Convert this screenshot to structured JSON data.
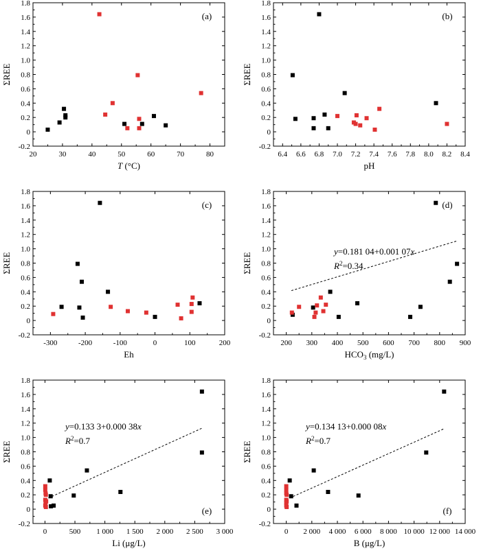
{
  "figure": {
    "colors": {
      "black_series": "#000000",
      "red_series": "#e03232",
      "axis": "#000000"
    }
  },
  "chart_data": [
    {
      "panel": "(a)",
      "type": "scatter",
      "ylabel": "ΣREE",
      "xlabel": {
        "italic": "T",
        "rest": " (°C)"
      },
      "xlim": [
        20,
        85
      ],
      "ylim": [
        -0.2,
        1.8
      ],
      "xticks": [
        20,
        30,
        40,
        50,
        60,
        70,
        80
      ],
      "xtick_labels": [
        "20",
        "30",
        "40",
        "50",
        "60",
        "70",
        "80"
      ],
      "yticks": [
        -0.2,
        0,
        0.2,
        0.4,
        0.6,
        0.8,
        1.0,
        1.2,
        1.4,
        1.6,
        1.8
      ],
      "ytick_labels": [
        "-0.2",
        "0",
        "0.2",
        "0.4",
        "0.6",
        "0.8",
        "1.0",
        "1.2",
        "1.4",
        "1.6",
        "1.8"
      ],
      "series": [
        {
          "color": "black",
          "points": [
            [
              25,
              0.03
            ],
            [
              29,
              0.13
            ],
            [
              30.5,
              0.32
            ],
            [
              31,
              0.23
            ],
            [
              31,
              0.2
            ],
            [
              51,
              0.11
            ],
            [
              57,
              0.11
            ],
            [
              61,
              0.22
            ],
            [
              65,
              0.09
            ]
          ]
        },
        {
          "color": "red",
          "points": [
            [
              42.5,
              1.64
            ],
            [
              44.5,
              0.24
            ],
            [
              47,
              0.4
            ],
            [
              52,
              0.05
            ],
            [
              55.5,
              0.79
            ],
            [
              56,
              0.18
            ],
            [
              56,
              0.05
            ],
            [
              77,
              0.54
            ]
          ]
        }
      ],
      "fit": null
    },
    {
      "panel": "(b)",
      "type": "scatter",
      "ylabel": "ΣREE",
      "xlabel": {
        "italic": "",
        "rest": "pH"
      },
      "xlim": [
        6.3,
        8.4
      ],
      "ylim": [
        -0.2,
        1.8
      ],
      "xticks": [
        6.4,
        6.6,
        6.8,
        7.0,
        7.2,
        7.4,
        7.6,
        7.8,
        8.0,
        8.2,
        8.4
      ],
      "xtick_labels": [
        "6.4",
        "6.6",
        "6.8",
        "7.0",
        "7.2",
        "7.4",
        "7.6",
        "7.8",
        "8.0",
        "8.2",
        "8.4"
      ],
      "yticks": [
        -0.2,
        0,
        0.2,
        0.4,
        0.6,
        0.8,
        1.0,
        1.2,
        1.4,
        1.6,
        1.8
      ],
      "ytick_labels": [
        "-0.2",
        "0",
        "0.2",
        "0.4",
        "0.6",
        "0.8",
        "1.0",
        "1.2",
        "1.4",
        "1.6",
        "1.8"
      ],
      "series": [
        {
          "color": "black",
          "points": [
            [
              6.51,
              0.79
            ],
            [
              6.54,
              0.18
            ],
            [
              6.74,
              0.19
            ],
            [
              6.74,
              0.05
            ],
            [
              6.8,
              1.64
            ],
            [
              6.86,
              0.24
            ],
            [
              6.9,
              0.05
            ],
            [
              7.08,
              0.54
            ],
            [
              8.08,
              0.4
            ]
          ]
        },
        {
          "color": "red",
          "points": [
            [
              7.0,
              0.22
            ],
            [
              7.18,
              0.13
            ],
            [
              7.2,
              0.11
            ],
            [
              7.21,
              0.23
            ],
            [
              7.25,
              0.09
            ],
            [
              7.32,
              0.19
            ],
            [
              7.41,
              0.03
            ],
            [
              7.46,
              0.32
            ],
            [
              8.2,
              0.11
            ]
          ]
        }
      ],
      "fit": null
    },
    {
      "panel": "(c)",
      "type": "scatter",
      "ylabel": "ΣREE",
      "xlabel": {
        "italic": "",
        "rest": "Eh"
      },
      "xlim": [
        -350,
        200
      ],
      "ylim": [
        -0.2,
        1.8
      ],
      "xticks": [
        -300,
        -200,
        -100,
        0,
        100,
        200
      ],
      "xtick_labels": [
        "-300",
        "-200",
        "-100",
        "0",
        "100",
        "200"
      ],
      "yticks": [
        -0.2,
        0,
        0.2,
        0.4,
        0.6,
        0.8,
        1.0,
        1.2,
        1.4,
        1.6,
        1.8
      ],
      "ytick_labels": [
        "-0.2",
        "0",
        "0.2",
        "0.4",
        "0.6",
        "0.8",
        "1.0",
        "1.2",
        "1.4",
        "1.6",
        "1.8"
      ],
      "series": [
        {
          "color": "black",
          "points": [
            [
              -268,
              0.19
            ],
            [
              -222,
              0.79
            ],
            [
              -217,
              0.18
            ],
            [
              -210,
              0.54
            ],
            [
              -207,
              0.04
            ],
            [
              -158,
              1.64
            ],
            [
              -135,
              0.4
            ],
            [
              0,
              0.05
            ],
            [
              128,
              0.24
            ]
          ]
        },
        {
          "color": "red",
          "points": [
            [
              -292,
              0.09
            ],
            [
              -127,
              0.19
            ],
            [
              -78,
              0.13
            ],
            [
              -25,
              0.11
            ],
            [
              65,
              0.22
            ],
            [
              75,
              0.03
            ],
            [
              105,
              0.23
            ],
            [
              108,
              0.32
            ],
            [
              105,
              0.12
            ]
          ]
        }
      ],
      "fit": null
    },
    {
      "panel": "(d)",
      "type": "scatter",
      "ylabel": "ΣREE",
      "xlabel": {
        "italic": "",
        "rest": "HCO",
        "sub": "3",
        "tail": " (mg/L)"
      },
      "xlim": [
        150,
        900
      ],
      "ylim": [
        -0.2,
        1.8
      ],
      "xticks": [
        200,
        300,
        400,
        500,
        600,
        700,
        800,
        900
      ],
      "xtick_labels": [
        "200",
        "300",
        "400",
        "500",
        "600",
        "700",
        "800",
        "900"
      ],
      "yticks": [
        -0.2,
        0,
        0.2,
        0.4,
        0.6,
        0.8,
        1.0,
        1.2,
        1.4,
        1.6,
        1.8
      ],
      "ytick_labels": [
        "-0.2",
        "0",
        "0.2",
        "0.4",
        "0.6",
        "0.8",
        "1.0",
        "1.2",
        "1.4",
        "1.6",
        "1.8"
      ],
      "series": [
        {
          "color": "black",
          "points": [
            [
              225,
              0.08
            ],
            [
              305,
              0.18
            ],
            [
              372,
              0.4
            ],
            [
              405,
              0.05
            ],
            [
              478,
              0.24
            ],
            [
              685,
              0.05
            ],
            [
              725,
              0.19
            ],
            [
              785,
              1.64
            ],
            [
              840,
              0.54
            ],
            [
              868,
              0.79
            ]
          ]
        },
        {
          "color": "red",
          "points": [
            [
              222,
              0.11
            ],
            [
              250,
              0.19
            ],
            [
              310,
              0.05
            ],
            [
              315,
              0.11
            ],
            [
              320,
              0.21
            ],
            [
              335,
              0.32
            ],
            [
              345,
              0.13
            ],
            [
              355,
              0.22
            ]
          ]
        }
      ],
      "fit": {
        "x_from": 220,
        "x_to": 870,
        "intercept": 0.18104,
        "slope": 0.00107,
        "eq_y": "y",
        "eq_body": "=0.181 04+0.001 07",
        "eq_x": "x",
        "r_label": "R",
        "r_sup": "2",
        "r_value": "=0.34"
      }
    },
    {
      "panel": "(e)",
      "type": "scatter",
      "ylabel": "ΣREE",
      "xlabel": {
        "italic": "",
        "rest": "Li (μg/L)"
      },
      "xlim": [
        -200,
        3000
      ],
      "ylim": [
        -0.2,
        1.8
      ],
      "xticks": [
        0,
        500,
        1000,
        1500,
        2000,
        2500,
        3000
      ],
      "xtick_labels": [
        "0",
        "500",
        "1 000",
        "1 500",
        "2 000",
        "2 500",
        "3 000"
      ],
      "yticks": [
        -0.2,
        0,
        0.2,
        0.4,
        0.6,
        0.8,
        1.0,
        1.2,
        1.4,
        1.6,
        1.8
      ],
      "ytick_labels": [
        "-0.2",
        "0",
        "0.2",
        "0.4",
        "0.6",
        "0.8",
        "1.0",
        "1.2",
        "1.4",
        "1.6",
        "1.8"
      ],
      "series": [
        {
          "color": "black",
          "points": [
            [
              80,
              0.4
            ],
            [
              95,
              0.18
            ],
            [
              100,
              0.04
            ],
            [
              145,
              0.05
            ],
            [
              480,
              0.19
            ],
            [
              700,
              0.54
            ],
            [
              1260,
              0.24
            ],
            [
              2620,
              1.64
            ],
            [
              2620,
              0.79
            ]
          ]
        },
        {
          "color": "red",
          "points": [
            [
              5,
              0.32
            ],
            [
              5,
              0.27
            ],
            [
              10,
              0.22
            ],
            [
              15,
              0.2
            ],
            [
              5,
              0.13
            ],
            [
              20,
              0.11
            ],
            [
              10,
              0.09
            ],
            [
              5,
              0.05
            ],
            [
              15,
              0.03
            ]
          ]
        }
      ],
      "fit": {
        "x_from": 0,
        "x_to": 2620,
        "intercept": 0.1333,
        "slope": 0.00038,
        "eq_y": "y",
        "eq_body": "=0.133 3+0.000 38",
        "eq_x": "x",
        "r_label": "R",
        "r_sup": "2",
        "r_value": "=0.7"
      }
    },
    {
      "panel": "(f)",
      "type": "scatter",
      "ylabel": "ΣREE",
      "xlabel": {
        "italic": "",
        "rest": "B (μg/L)"
      },
      "xlim": [
        -1000,
        14000
      ],
      "ylim": [
        -0.2,
        1.8
      ],
      "xticks": [
        0,
        2000,
        4000,
        6000,
        8000,
        10000,
        12000,
        14000
      ],
      "xtick_labels": [
        "0",
        "2 000",
        "4 000",
        "6 000",
        "8 000",
        "10 000",
        "12 000",
        "14 000"
      ],
      "yticks": [
        -0.2,
        0,
        0.2,
        0.4,
        0.6,
        0.8,
        1.0,
        1.2,
        1.4,
        1.6,
        1.8
      ],
      "ytick_labels": [
        "-0.2",
        "0",
        "0.2",
        "0.4",
        "0.6",
        "0.8",
        "1.0",
        "1.2",
        "1.4",
        "1.6",
        "1.8"
      ],
      "series": [
        {
          "color": "black",
          "points": [
            [
              270,
              0.4
            ],
            [
              380,
              0.18
            ],
            [
              800,
              0.05
            ],
            [
              2150,
              0.54
            ],
            [
              3270,
              0.24
            ],
            [
              5650,
              0.19
            ],
            [
              10950,
              0.79
            ],
            [
              12350,
              1.64
            ]
          ]
        },
        {
          "color": "red",
          "points": [
            [
              0,
              0.32
            ],
            [
              0,
              0.27
            ],
            [
              0,
              0.22
            ],
            [
              30,
              0.2
            ],
            [
              0,
              0.13
            ],
            [
              30,
              0.11
            ],
            [
              0,
              0.09
            ],
            [
              0,
              0.05
            ],
            [
              30,
              0.03
            ]
          ]
        }
      ],
      "fit": {
        "x_from": 0,
        "x_to": 12350,
        "intercept": 0.13413,
        "slope": 8e-05,
        "eq_y": "y",
        "eq_body": "=0.134 13+0.000 08",
        "eq_x": "x",
        "r_label": "R",
        "r_sup": "2",
        "r_value": "=0.7"
      }
    }
  ]
}
